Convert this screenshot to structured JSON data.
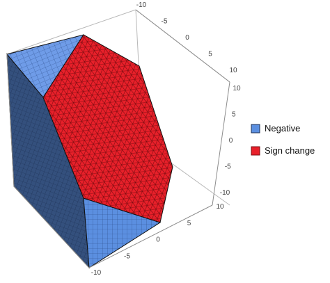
{
  "chart_data": {
    "type": "3d-region",
    "title": "",
    "axes": {
      "x": {
        "label": "",
        "range": [
          -10,
          10
        ],
        "ticks": [
          "-10",
          "-5",
          "0",
          "5",
          "10"
        ]
      },
      "y": {
        "label": "",
        "range": [
          -10,
          10
        ],
        "ticks": [
          "-10",
          "-5",
          "0",
          "5",
          "10"
        ]
      },
      "z": {
        "label": "",
        "range": [
          -10,
          10
        ],
        "ticks": [
          "-10",
          "-5",
          "0",
          "5",
          "10"
        ]
      }
    },
    "series": [
      {
        "name": "Negative",
        "color": "#5b8fe0"
      },
      {
        "name": "Sign change",
        "color": "#e8202a"
      }
    ],
    "legend_position": "right",
    "box": true,
    "mesh": true
  }
}
